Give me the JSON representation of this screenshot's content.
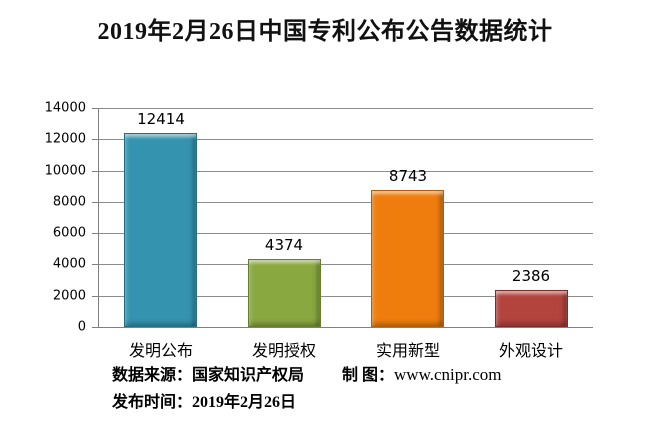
{
  "title": "2019年2月26日中国专利公布公告数据统计",
  "chart_data": {
    "type": "bar",
    "title": "2019年2月26日中国专利公布公告数据统计",
    "categories": [
      "发明公布",
      "发明授权",
      "实用新型",
      "外观设计"
    ],
    "values": [
      12414,
      4374,
      8743,
      2386
    ],
    "xlabel": "",
    "ylabel": "",
    "ylim": [
      0,
      14000
    ],
    "yticks": [
      0,
      2000,
      4000,
      6000,
      8000,
      10000,
      12000,
      14000
    ],
    "grid": true,
    "legend": false,
    "bar_colors": [
      "#3493AF",
      "#89A840",
      "#EE7D0D",
      "#B2433D"
    ],
    "bar_border_colors": [
      "#1F6F89",
      "#657F2D",
      "#B45C06",
      "#802B27"
    ],
    "gridline_color": "#8c8c8c",
    "axis_color": "#808080"
  },
  "footer": {
    "source": "数据来源：国家知识产权局",
    "credit_label": "制 图：",
    "credit_url": "www.cnipr.com",
    "publish": "发布时间：2019年2月26日"
  }
}
